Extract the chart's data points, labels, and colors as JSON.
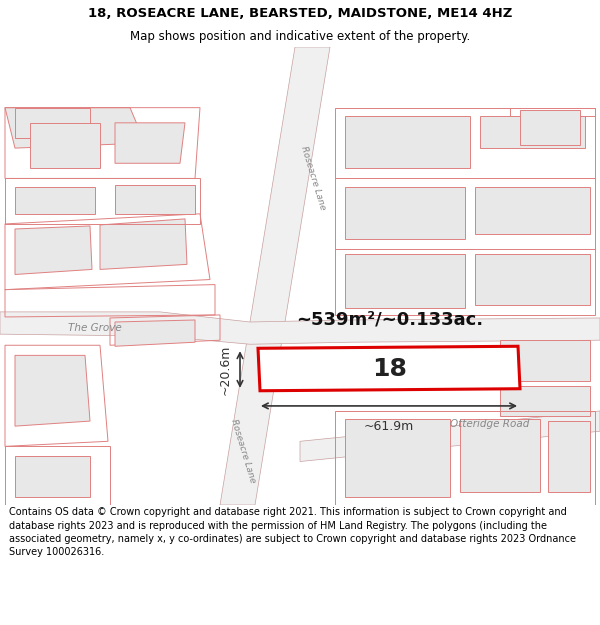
{
  "title_line1": "18, ROSEACRE LANE, BEARSTED, MAIDSTONE, ME14 4HZ",
  "title_line2": "Map shows position and indicative extent of the property.",
  "footer_text": "Contains OS data © Crown copyright and database right 2021. This information is subject to Crown copyright and database rights 2023 and is reproduced with the permission of HM Land Registry. The polygons (including the associated geometry, namely x, y co-ordinates) are subject to Crown copyright and database rights 2023 Ordnance Survey 100026316.",
  "area_text": "~539m²/~0.133ac.",
  "property_label": "18",
  "dim_width": "~61.9m",
  "dim_height": "~20.6m",
  "bg_white": "#ffffff",
  "map_bg": "#ffffff",
  "bldg_fill": "#e8e8e8",
  "bldg_edge": "#e08080",
  "road_fill": "#f5f5f5",
  "road_edge": "#d09090",
  "highlight_color": "#dd0000",
  "highlight_fill": "#ffffff",
  "dim_color": "#333333",
  "road_label_color": "#888888",
  "road_label_roseacre": "Roseacre Lane",
  "road_label_grove": "The Grove",
  "road_label_otteridge": "Otteridge Road",
  "title_fontsize": 9.5,
  "subtitle_fontsize": 8.5,
  "footer_fontsize": 7.0,
  "label_fontsize": 18,
  "area_fontsize": 13
}
